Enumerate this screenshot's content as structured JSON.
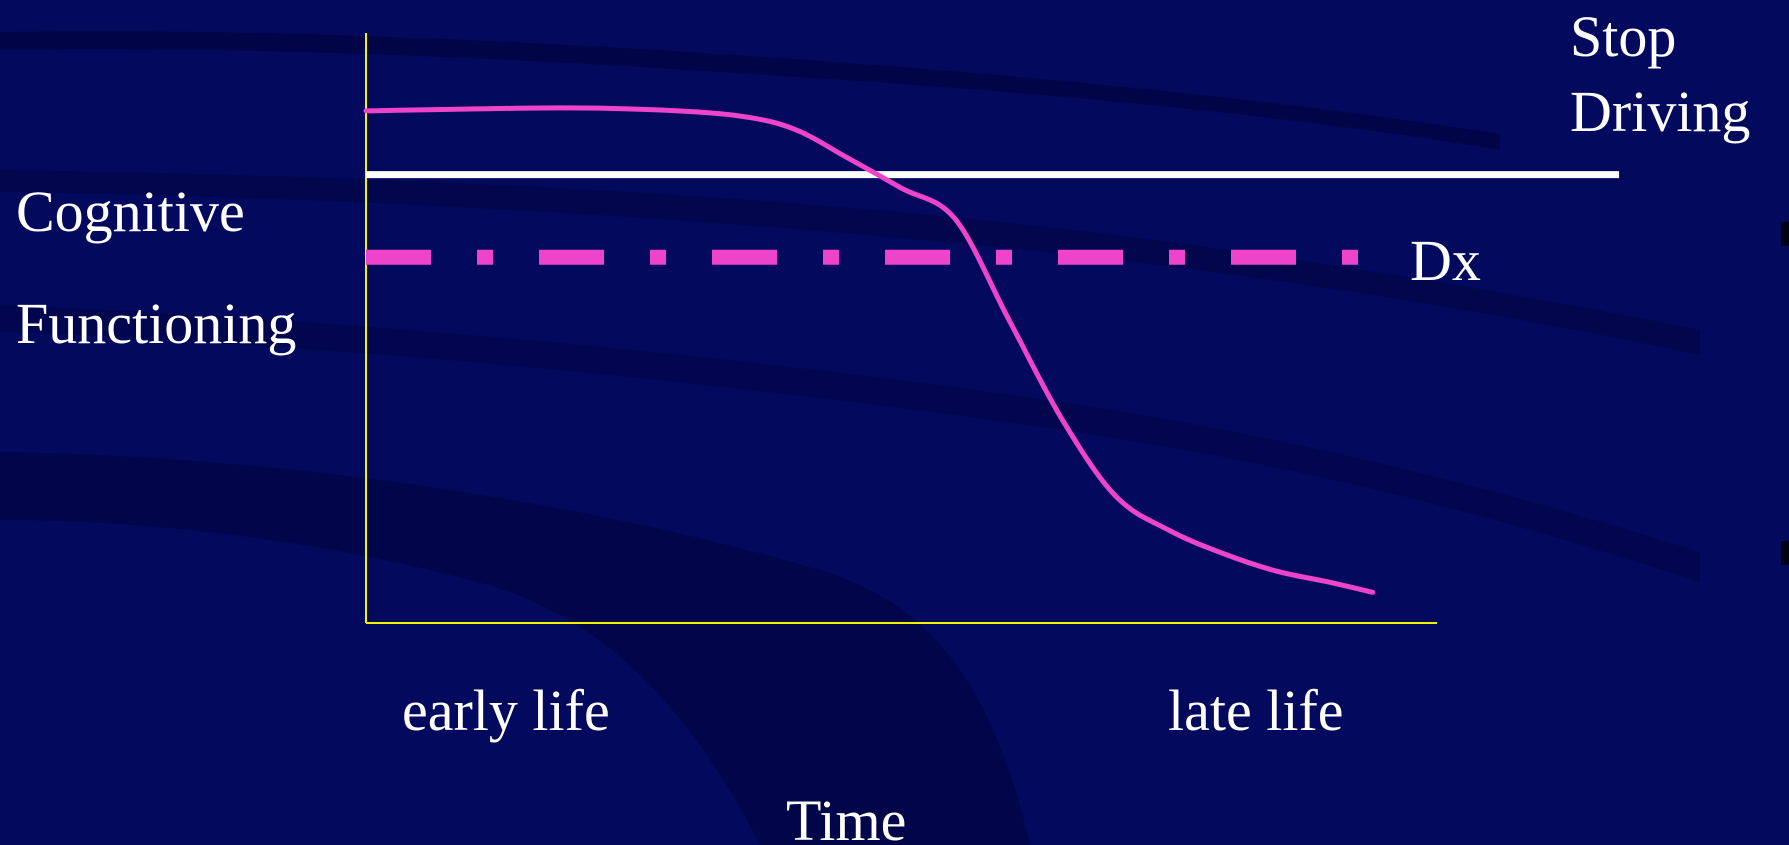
{
  "background": {
    "base_color": "#030a5e",
    "stripe_color": "#000033"
  },
  "ui": {
    "label_color": "#ffffff",
    "axis_color": "#f2f200",
    "curve_color": "#ee44cc",
    "threshold_color": "#ffffff",
    "dx_color": "#ee44cc"
  },
  "chart_data": {
    "type": "line",
    "title": "",
    "xlabel": "Time",
    "ylabel_lines": [
      "Cognitive",
      "Functioning"
    ],
    "x_tick_labels": [
      "early life",
      "late life"
    ],
    "grid": false,
    "legend": "none",
    "xlim": [
      0,
      100
    ],
    "ylim": [
      0,
      100
    ],
    "series": [
      {
        "x": [
          0,
          18,
          28,
          35,
          40,
          45,
          50,
          55,
          60,
          65,
          70,
          75,
          80,
          85,
          90,
          94
        ],
        "y": [
          86.8,
          87.3,
          86.9,
          85.9,
          83.7,
          78.8,
          73.7,
          68.5,
          51.5,
          34.5,
          21.5,
          15.7,
          11.8,
          8.8,
          6.9,
          5.2
        ],
        "color": "#ee44cc"
      }
    ],
    "thresholds": [
      {
        "label_lines": [
          "Stop",
          "Driving"
        ],
        "y": 76,
        "x_start": 0,
        "x_end": 117,
        "style": "solid",
        "color": "#ffffff"
      },
      {
        "label_lines": [
          "Dx"
        ],
        "y": 62,
        "x_start": 0,
        "x_end": 94,
        "style": "dash-dot",
        "color": "#ee44cc"
      }
    ]
  }
}
